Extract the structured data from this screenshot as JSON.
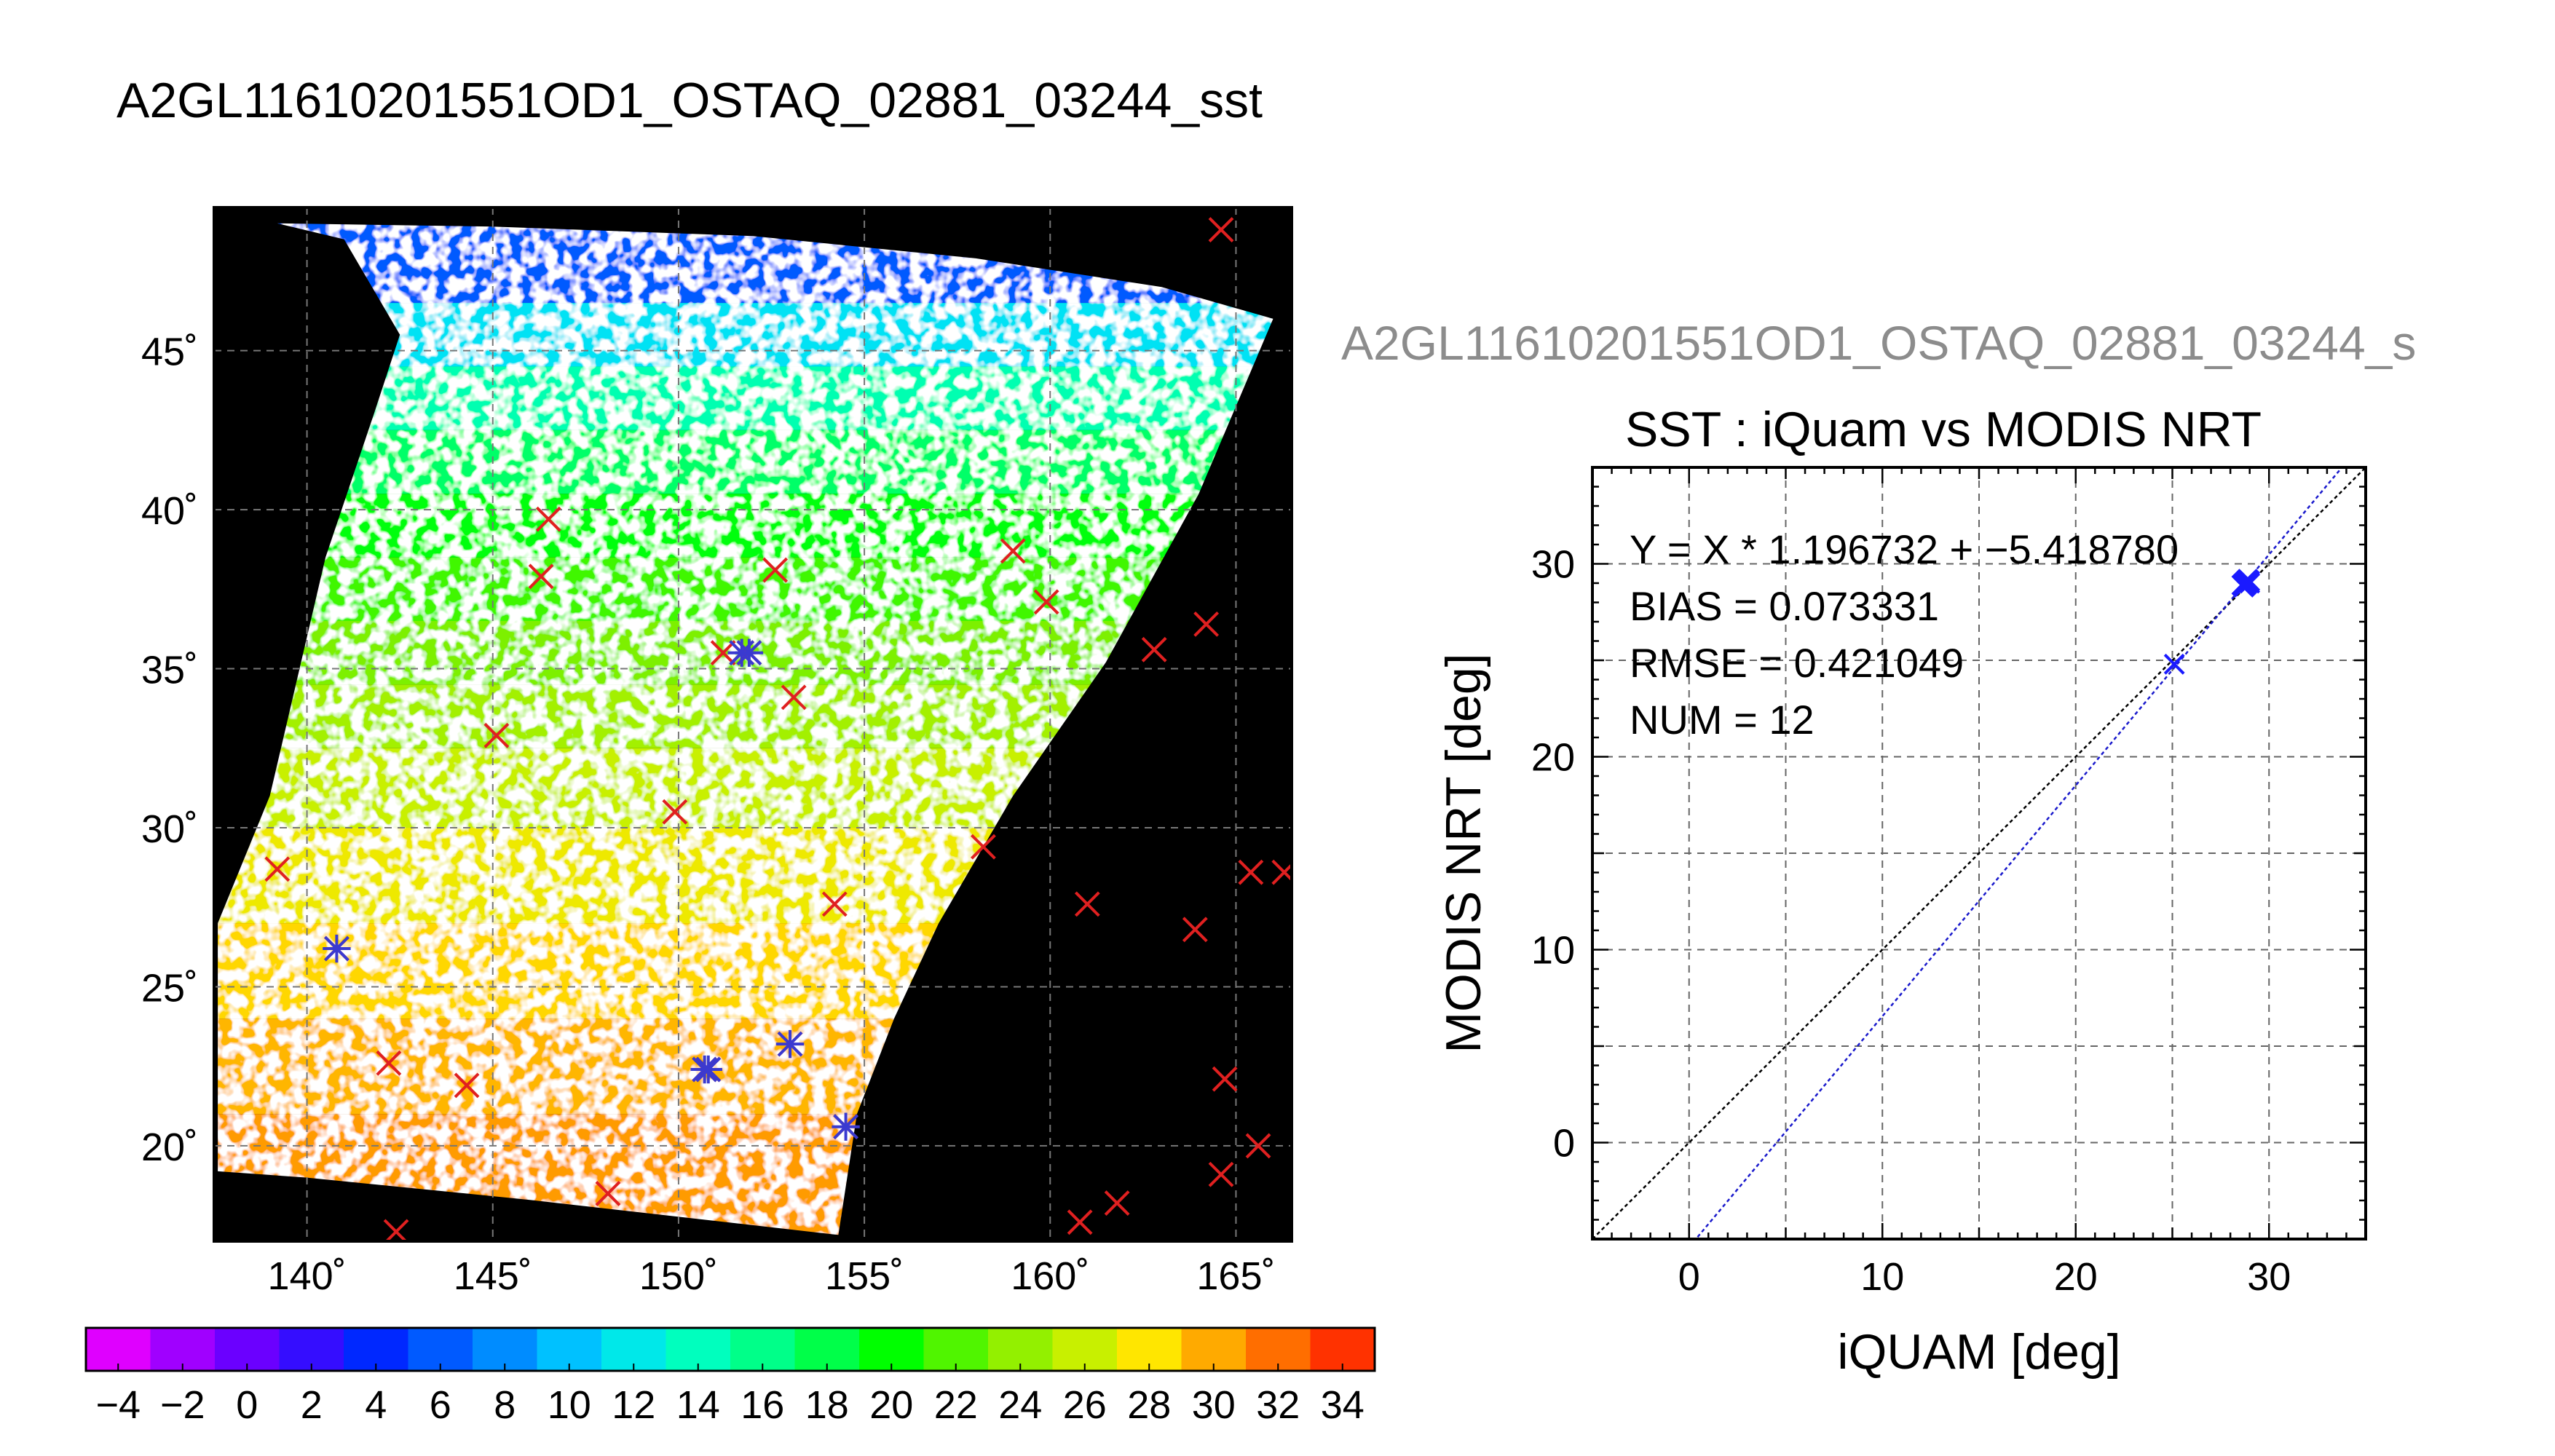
{
  "map_panel": {
    "title": "A2GL11610201551OD1_OSTAQ_02881_03244_sst",
    "lat_ticks": [
      "20˚",
      "25˚",
      "30˚",
      "35˚",
      "40˚",
      "45˚"
    ],
    "lon_ticks": [
      "140˚",
      "145˚",
      "150˚",
      "155˚",
      "160˚",
      "165˚"
    ],
    "lat_values": [
      20,
      25,
      30,
      35,
      40,
      45
    ],
    "lon_values": [
      140,
      145,
      150,
      155,
      160,
      165
    ],
    "lat_range": [
      17.0,
      49.5
    ],
    "lon_range": [
      137.5,
      166.5
    ],
    "colorbar": {
      "range": [
        -5,
        35
      ],
      "tick_values": [
        -4,
        -2,
        0,
        2,
        4,
        6,
        8,
        10,
        12,
        14,
        16,
        18,
        20,
        22,
        24,
        26,
        28,
        30,
        32,
        34
      ],
      "tick_labels": [
        "−4",
        "−2",
        "0",
        "2",
        "4",
        "6",
        "8",
        "10",
        "12",
        "14",
        "16",
        "18",
        "20",
        "22",
        "24",
        "26",
        "28",
        "30",
        "32",
        "34"
      ]
    },
    "matched_points": [
      {
        "lon": 140.8,
        "lat": 26.2
      },
      {
        "lon": 151.7,
        "lat": 35.5
      },
      {
        "lon": 151.9,
        "lat": 35.5
      },
      {
        "lon": 150.7,
        "lat": 22.4
      },
      {
        "lon": 150.8,
        "lat": 22.4
      },
      {
        "lon": 153.0,
        "lat": 23.2
      },
      {
        "lon": 154.5,
        "lat": 20.6
      }
    ],
    "unmatched_points": [
      {
        "lon": 139.2,
        "lat": 28.7
      },
      {
        "lon": 142.2,
        "lat": 22.6
      },
      {
        "lon": 142.4,
        "lat": 17.3
      },
      {
        "lon": 144.3,
        "lat": 21.9
      },
      {
        "lon": 145.1,
        "lat": 32.9
      },
      {
        "lon": 146.3,
        "lat": 37.9
      },
      {
        "lon": 146.5,
        "lat": 39.7
      },
      {
        "lon": 148.1,
        "lat": 18.5
      },
      {
        "lon": 149.9,
        "lat": 30.5
      },
      {
        "lon": 151.2,
        "lat": 35.5
      },
      {
        "lon": 152.6,
        "lat": 38.1
      },
      {
        "lon": 153.1,
        "lat": 34.1
      },
      {
        "lon": 154.2,
        "lat": 27.6
      },
      {
        "lon": 158.2,
        "lat": 29.4
      },
      {
        "lon": 159.0,
        "lat": 38.7
      },
      {
        "lon": 159.9,
        "lat": 37.1
      },
      {
        "lon": 160.8,
        "lat": 17.6
      },
      {
        "lon": 161.0,
        "lat": 27.6
      },
      {
        "lon": 161.8,
        "lat": 18.2
      },
      {
        "lon": 162.8,
        "lat": 35.6
      },
      {
        "lon": 163.9,
        "lat": 26.8
      },
      {
        "lon": 164.2,
        "lat": 36.4
      },
      {
        "lon": 164.6,
        "lat": 48.8
      },
      {
        "lon": 164.7,
        "lat": 22.1
      },
      {
        "lon": 164.6,
        "lat": 19.1
      },
      {
        "lon": 165.4,
        "lat": 28.6
      },
      {
        "lon": 165.6,
        "lat": 20.0
      },
      {
        "lon": 166.3,
        "lat": 28.6
      }
    ]
  },
  "scatter_panel": {
    "header": "A2GL11610201551OD1_OSTAQ_02881_03244_s",
    "title": "SST : iQuam vs MODIS NRT",
    "xlabel": "iQUAM [deg]",
    "ylabel": "MODIS NRT [deg]",
    "stats": [
      "Y = X * 1.196732 + −5.418780",
      "BIAS = 0.073331",
      "RMSE = 0.421049",
      "NUM = 12"
    ]
  },
  "chart_data": {
    "type": "scatter",
    "title": "SST : iQuam vs MODIS NRT",
    "xlabel": "iQUAM [deg]",
    "ylabel": "MODIS NRT [deg]",
    "xlim": [
      -5,
      35
    ],
    "ylim": [
      -5,
      35
    ],
    "x_ticks": [
      0,
      10,
      20,
      30
    ],
    "y_ticks": [
      0,
      10,
      20,
      30
    ],
    "minor_grid": [
      5,
      15,
      25
    ],
    "grid": true,
    "fit": {
      "slope": 1.196732,
      "intercept": -5.41878
    },
    "x": [
      25.1,
      28.6,
      28.7,
      28.8,
      28.9,
      28.9,
      29.0,
      28.7,
      28.8,
      29.0,
      28.6,
      28.9
    ],
    "y": [
      24.8,
      28.9,
      29.0,
      29.1,
      29.0,
      29.2,
      29.1,
      28.8,
      28.9,
      29.0,
      28.9,
      29.1
    ],
    "colors": {
      "points": "#1a1aff",
      "fit_line": "#1a1acc",
      "identity_line": "#000000"
    }
  }
}
